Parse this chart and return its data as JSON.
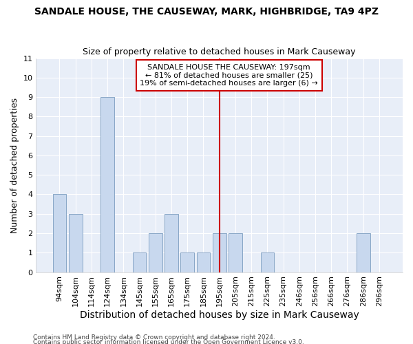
{
  "title1": "SANDALE HOUSE, THE CAUSEWAY, MARK, HIGHBRIDGE, TA9 4PZ",
  "title2": "Size of property relative to detached houses in Mark Causeway",
  "xlabel": "Distribution of detached houses by size in Mark Causeway",
  "ylabel": "Number of detached properties",
  "categories": [
    "94sqm",
    "104sqm",
    "114sqm",
    "124sqm",
    "134sqm",
    "145sqm",
    "155sqm",
    "165sqm",
    "175sqm",
    "185sqm",
    "195sqm",
    "205sqm",
    "215sqm",
    "225sqm",
    "235sqm",
    "246sqm",
    "256sqm",
    "266sqm",
    "276sqm",
    "286sqm",
    "296sqm"
  ],
  "values": [
    4,
    3,
    0,
    9,
    0,
    1,
    2,
    3,
    1,
    1,
    2,
    2,
    0,
    1,
    0,
    0,
    0,
    0,
    0,
    2,
    0
  ],
  "bar_color": "#c8d8ee",
  "bar_edge_color": "#7a9cbf",
  "highlight_index": 10,
  "annotation_text": "SANDALE HOUSE THE CAUSEWAY: 197sqm\n← 81% of detached houses are smaller (25)\n19% of semi-detached houses are larger (6) →",
  "annotation_box_color": "#ffffff",
  "annotation_box_edge_color": "#cc0000",
  "vline_color": "#cc0000",
  "ylim": [
    0,
    11
  ],
  "yticks": [
    0,
    1,
    2,
    3,
    4,
    5,
    6,
    7,
    8,
    9,
    10,
    11
  ],
  "footer1": "Contains HM Land Registry data © Crown copyright and database right 2024.",
  "footer2": "Contains public sector information licensed under the Open Government Licence v3.0.",
  "background_color": "#ffffff",
  "plot_background_color": "#e8eef8",
  "grid_color": "#ffffff",
  "title_fontsize": 10,
  "subtitle_fontsize": 9,
  "tick_fontsize": 8,
  "ylabel_fontsize": 9,
  "xlabel_fontsize": 10
}
